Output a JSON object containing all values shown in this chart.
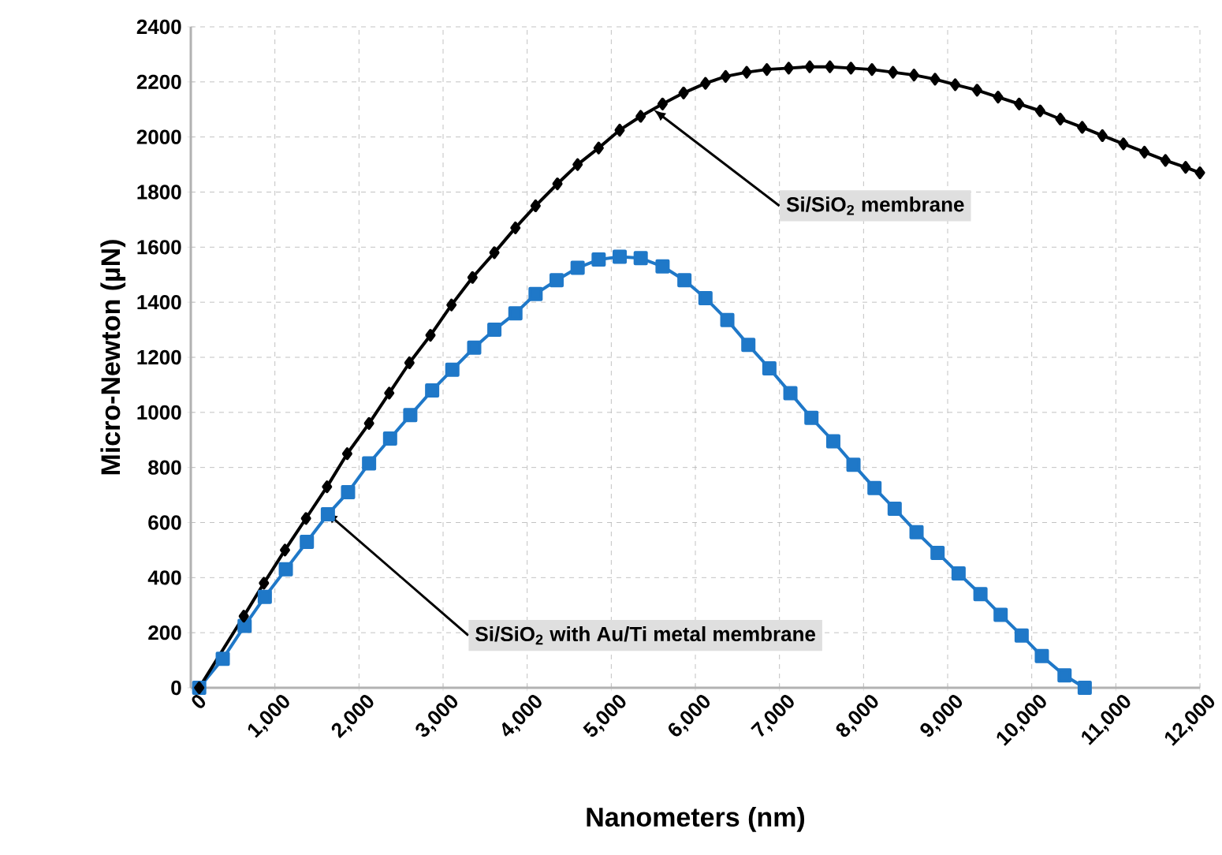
{
  "chart_data": {
    "type": "line",
    "xlabel": "Nanometers (nm)",
    "ylabel": "Micro-Newton (µN)",
    "xlim": [
      0,
      12000
    ],
    "ylim": [
      0,
      2400
    ],
    "xticks": [
      0,
      {
        "value": 1000,
        "label": "1,000"
      },
      {
        "value": 2000,
        "label": "2,000"
      },
      {
        "value": 3000,
        "label": "3,000"
      },
      {
        "value": 4000,
        "label": "4,000"
      },
      {
        "value": 5000,
        "label": "5,000"
      },
      {
        "value": 6000,
        "label": "6,000"
      },
      {
        "value": 7000,
        "label": "7,000"
      },
      {
        "value": 8000,
        "label": "8,000"
      },
      {
        "value": 9000,
        "label": "9,000"
      },
      {
        "value": 10000,
        "label": "10,000"
      },
      {
        "value": 11000,
        "label": "11,000"
      },
      {
        "value": 12000,
        "label": "12,000"
      }
    ],
    "yticks": [
      0,
      200,
      400,
      600,
      800,
      1000,
      1200,
      1400,
      1600,
      1800,
      2000,
      2200,
      2400
    ],
    "grid": true,
    "line_style": "solid",
    "series": [
      {
        "color": "#000000",
        "marker": "diamond",
        "x": [
          100,
          630,
          870,
          1120,
          1370,
          1620,
          1860,
          2120,
          2360,
          2600,
          2850,
          3100,
          3350,
          3610,
          3860,
          4100,
          4360,
          4600,
          4850,
          5100,
          5350,
          5610,
          5860,
          6120,
          6360,
          6610,
          6850,
          7110,
          7360,
          7600,
          7850,
          8100,
          8350,
          8600,
          8850,
          9090,
          9350,
          9600,
          9850,
          10100,
          10340,
          10600,
          10840,
          11090,
          11340,
          11590,
          11830,
          12000
        ],
        "values": [
          0,
          260,
          380,
          500,
          615,
          730,
          850,
          960,
          1070,
          1180,
          1280,
          1390,
          1490,
          1580,
          1670,
          1750,
          1830,
          1900,
          1960,
          2025,
          2075,
          2120,
          2160,
          2195,
          2220,
          2235,
          2245,
          2250,
          2255,
          2255,
          2250,
          2245,
          2235,
          2225,
          2210,
          2190,
          2170,
          2145,
          2120,
          2095,
          2065,
          2035,
          2005,
          1975,
          1945,
          1915,
          1890,
          1870
        ]
      },
      {
        "color": "#1f78c8",
        "marker": "square",
        "x": [
          100,
          380,
          640,
          880,
          1130,
          1380,
          1630,
          1870,
          2120,
          2370,
          2610,
          2870,
          3110,
          3370,
          3610,
          3860,
          4100,
          4350,
          4600,
          4850,
          5100,
          5350,
          5610,
          5870,
          6120,
          6380,
          6630,
          6880,
          7130,
          7380,
          7640,
          7880,
          8130,
          8370,
          8630,
          8880,
          9130,
          9390,
          9630,
          9880,
          10120,
          10390,
          10630
        ],
        "values": [
          0,
          105,
          225,
          330,
          430,
          530,
          630,
          710,
          815,
          905,
          990,
          1080,
          1155,
          1235,
          1300,
          1360,
          1430,
          1480,
          1525,
          1555,
          1565,
          1560,
          1530,
          1480,
          1415,
          1335,
          1245,
          1160,
          1070,
          980,
          895,
          810,
          725,
          650,
          565,
          490,
          415,
          340,
          265,
          190,
          115,
          45,
          0
        ]
      }
    ],
    "annotations": [
      {
        "text": "Si/SiO$_{2}$ membrane",
        "x": 5500,
        "y": 2100
      },
      {
        "text": "Si/SiO$_{2}$ with Au/Ti metal membrane",
        "x": 1600,
        "y": 640
      }
    ]
  }
}
